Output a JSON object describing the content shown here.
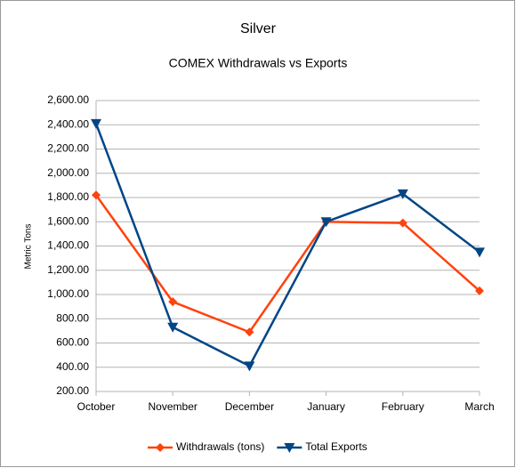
{
  "chart_data": {
    "type": "line",
    "title": "Silver",
    "subtitle": "COMEX Withdrawals vs Exports",
    "y_label": "Metric Tons",
    "categories": [
      "October",
      "November",
      "December",
      "January",
      "February",
      "March"
    ],
    "series": [
      {
        "name": "Withdrawals (tons)",
        "color": "#ff420e",
        "marker": "diamond",
        "values": [
          1820,
          940,
          690,
          1600,
          1590,
          1030
        ]
      },
      {
        "name": "Total Exports",
        "color": "#004586",
        "marker": "triangle-down",
        "values": [
          2410,
          730,
          410,
          1600,
          1830,
          1350
        ]
      }
    ],
    "ylim": [
      200,
      2600
    ],
    "yticks": [
      {
        "value": 200,
        "label": "200.00"
      },
      {
        "value": 400,
        "label": "400.00"
      },
      {
        "value": 600,
        "label": "600.00"
      },
      {
        "value": 800,
        "label": "800.00"
      },
      {
        "value": 1000,
        "label": "1,000.00"
      },
      {
        "value": 1200,
        "label": "1,200.00"
      },
      {
        "value": 1400,
        "label": "1,400.00"
      },
      {
        "value": 1600,
        "label": "1,600.00"
      },
      {
        "value": 1800,
        "label": "1,800.00"
      },
      {
        "value": 2000,
        "label": "2,000.00"
      },
      {
        "value": 2200,
        "label": "2,200.00"
      },
      {
        "value": 2400,
        "label": "2,400.00"
      },
      {
        "value": 2600,
        "label": "2,600.00"
      }
    ],
    "grid": true,
    "legend": "bottom"
  }
}
